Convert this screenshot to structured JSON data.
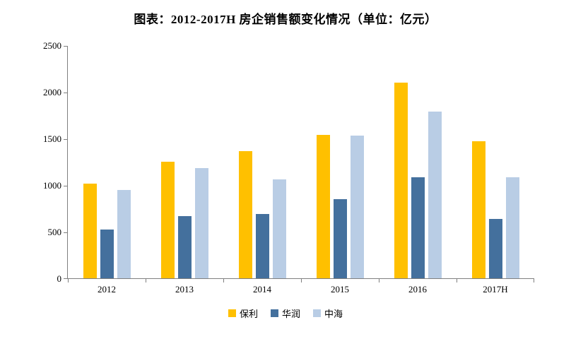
{
  "chart_data": {
    "type": "bar",
    "title": "图表：2012-2017H 房企销售额变化情况（单位：亿元）",
    "categories": [
      "2012",
      "2013",
      "2014",
      "2015",
      "2016",
      "2017H"
    ],
    "series": [
      {
        "key": "poly",
        "name": "保利",
        "color": "#FFC000",
        "values": [
          1017,
          1253,
          1366,
          1541,
          2101,
          1466
        ]
      },
      {
        "key": "huarun",
        "name": "华润",
        "color": "#44709D",
        "values": [
          522,
          663,
          692,
          851,
          1080,
          635
        ]
      },
      {
        "key": "zhonghai",
        "name": "中海",
        "color": "#B9CDE5",
        "values": [
          950,
          1180,
          1060,
          1532,
          1790,
          1080
        ]
      }
    ],
    "xlabel": "",
    "ylabel": "",
    "ylim": [
      0,
      2500
    ],
    "yticks": [
      0,
      500,
      1000,
      1500,
      2000,
      2500
    ],
    "grid": false,
    "legend_position": "bottom"
  },
  "style": {
    "axis_color": "#7f7f7f",
    "text_color": "#000000",
    "background": "#ffffff"
  }
}
